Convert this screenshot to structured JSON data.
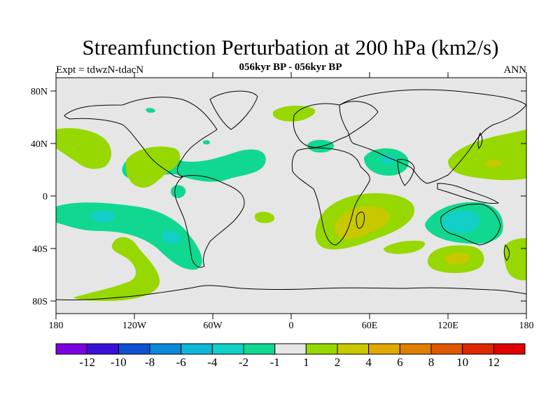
{
  "title": "Streamfunction Perturbation at 200 hPa (km2/s)",
  "subtitle": "056kyr BP - 056kyr BP",
  "experiment": "Expt = tdwzN-tdacN",
  "season": "ANN",
  "axes": {
    "y_ticks": [
      "80N",
      "40N",
      "0",
      "40S",
      "80S"
    ],
    "x_ticks": [
      "180",
      "120W",
      "60W",
      "0",
      "60E",
      "120E",
      "180"
    ]
  },
  "colorbar": {
    "colors": [
      "#7a00e0",
      "#3a10d8",
      "#1050d0",
      "#0a8ad8",
      "#10b8d8",
      "#10d0c8",
      "#10d890",
      "#e6e6e6",
      "#96d800",
      "#c8c800",
      "#e0a800",
      "#e08000",
      "#e05800",
      "#e02800",
      "#e00000"
    ],
    "labels": [
      "-12",
      "-10",
      "-8",
      "-6",
      "-4",
      "-2",
      "-1",
      "1",
      "2",
      "4",
      "6",
      "8",
      "10",
      "12"
    ]
  },
  "colors": {
    "background": "#e6e6e6",
    "positive_1": "#96d800",
    "positive_2": "#c8c800",
    "negative_1": "#10d890",
    "negative_2": "#10d0c8"
  }
}
